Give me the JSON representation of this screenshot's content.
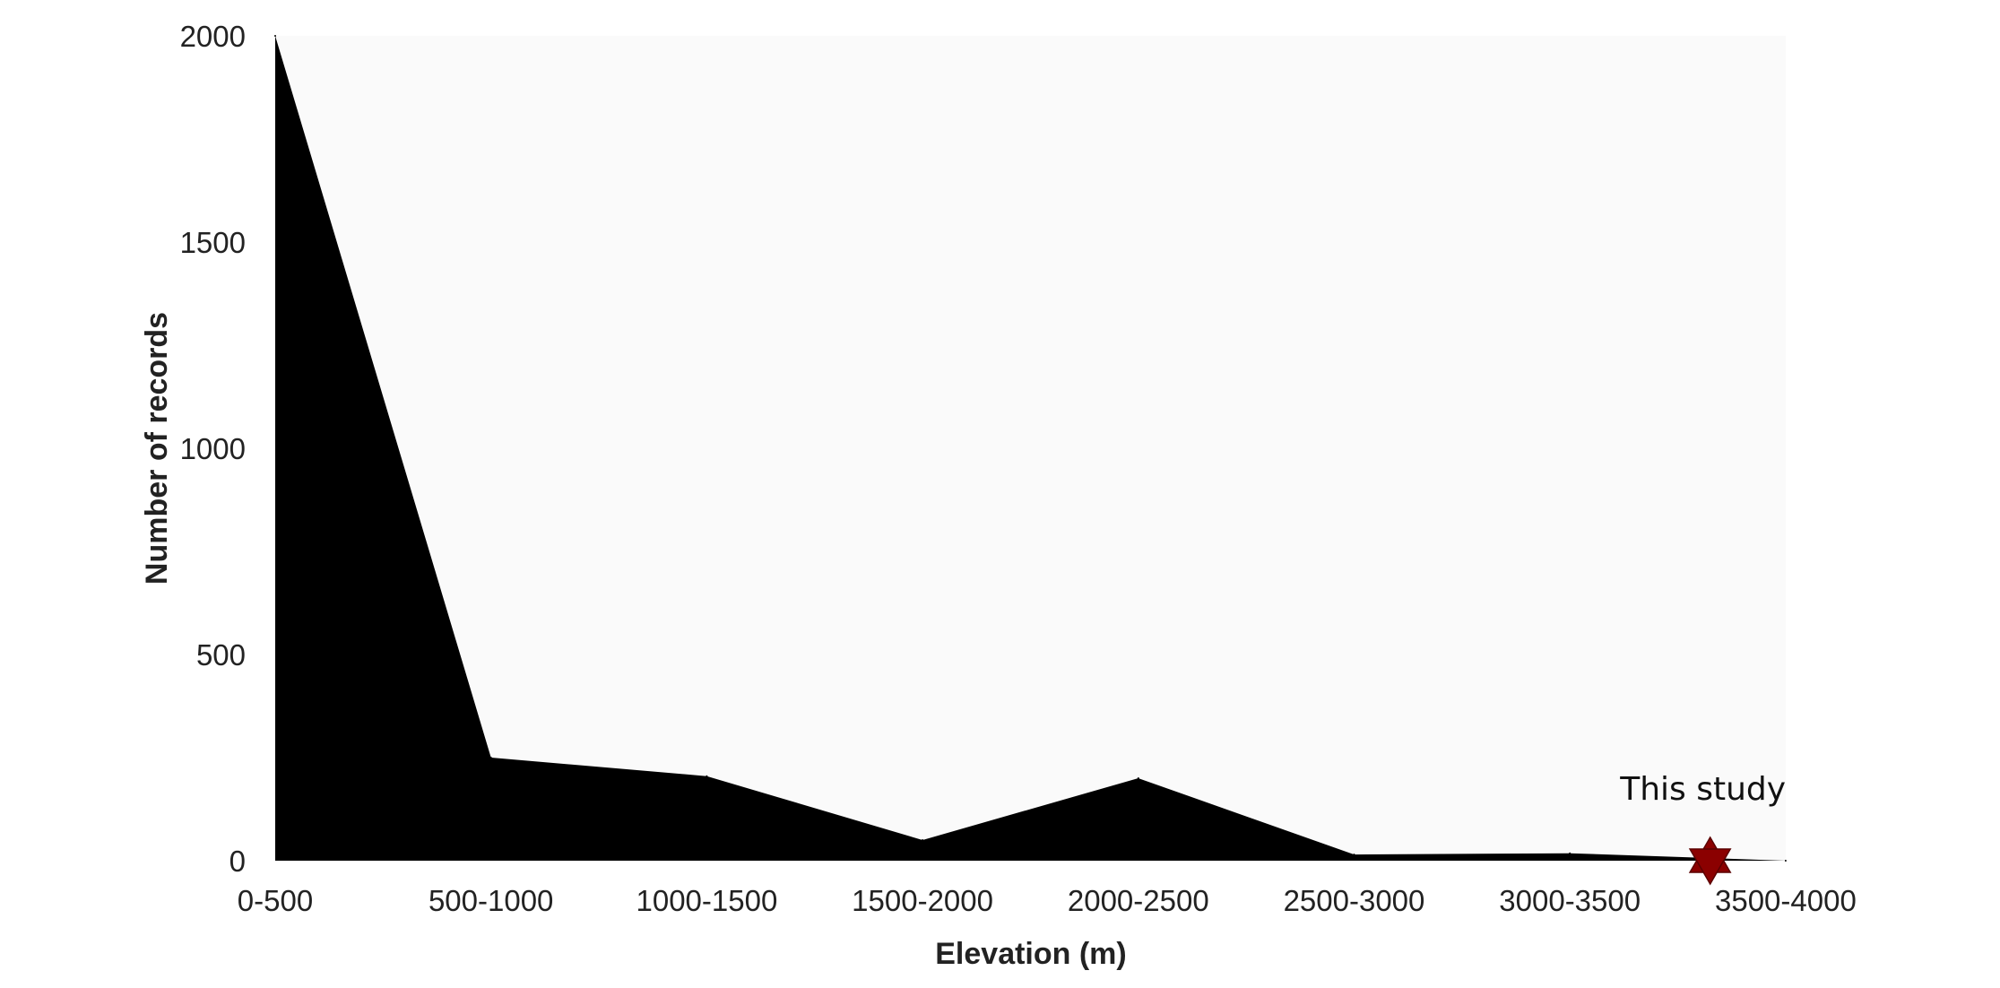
{
  "chart_data": {
    "type": "area",
    "categories": [
      "0-500",
      "500-1000",
      "1000-1500",
      "1500-2000",
      "2000-2500",
      "2500-3000",
      "3000-3500",
      "3500-4000"
    ],
    "values": [
      2000,
      250,
      205,
      50,
      200,
      15,
      18,
      0
    ],
    "title": "",
    "xlabel": "Elevation (m)",
    "ylabel": "Number of records",
    "ylim": [
      0,
      2000
    ],
    "yticks": [
      0,
      500,
      1000,
      1500,
      2000
    ],
    "grid": false,
    "fill_color": "#000000",
    "plot_background": "#fafafa",
    "annotation": {
      "text": "This study",
      "x_category_position": 6.65,
      "y_value": 0,
      "marker": "six-pointed-star",
      "marker_color": "#8b0000"
    }
  }
}
